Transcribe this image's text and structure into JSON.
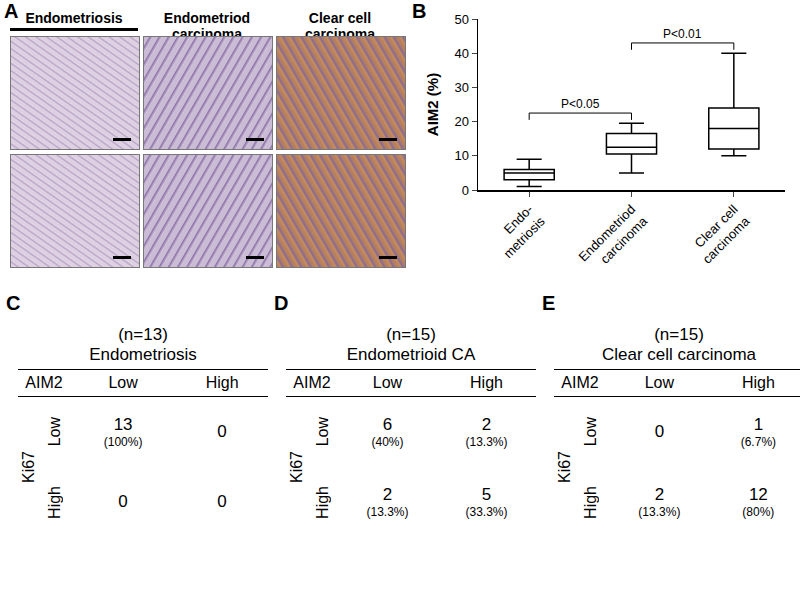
{
  "panel_a": {
    "label": "A",
    "columns": [
      "Endometriosis",
      "Endometriod carcinoma",
      "Clear cell carcinoma"
    ]
  },
  "chart_data": {
    "type": "box",
    "panel_label": "B",
    "categories": [
      "Endo-\nmetriosis",
      "Endometriod\ncarcinoma",
      "Clear cell\ncarcinoma"
    ],
    "min": [
      1,
      5,
      10
    ],
    "q1": [
      3,
      10.5,
      12
    ],
    "median": [
      5,
      12.5,
      18
    ],
    "q3": [
      6,
      16.5,
      24
    ],
    "max": [
      9,
      19.5,
      40
    ],
    "y_label": "AIM2 (%)",
    "ylim": [
      0,
      50
    ],
    "yticks": [
      0,
      10,
      20,
      30,
      40,
      50
    ],
    "color": "#000000",
    "grid": false,
    "comparisons": [
      {
        "from": 0,
        "to": 1,
        "label": "P<0.05"
      },
      {
        "from": 1,
        "to": 2,
        "label": "P<0.01"
      }
    ]
  },
  "tables": [
    {
      "label": "C",
      "n": "(n=13)",
      "title": "Endometriosis",
      "col_header": "AIM2",
      "row_header": "Ki67",
      "levels": [
        "Low",
        "High"
      ],
      "cells": [
        [
          {
            "count": "13",
            "percent": "(100%)"
          },
          {
            "count": "0",
            "percent": null
          }
        ],
        [
          {
            "count": "0",
            "percent": null
          },
          {
            "count": "0",
            "percent": null
          }
        ]
      ]
    },
    {
      "label": "D",
      "n": "(n=15)",
      "title": "Endometrioid CA",
      "col_header": "AIM2",
      "row_header": "Ki67",
      "levels": [
        "Low",
        "High"
      ],
      "cells": [
        [
          {
            "count": "6",
            "percent": "(40%)"
          },
          {
            "count": "2",
            "percent": "(13.3%)"
          }
        ],
        [
          {
            "count": "2",
            "percent": "(13.3%)"
          },
          {
            "count": "5",
            "percent": "(33.3%)"
          }
        ]
      ]
    },
    {
      "label": "E",
      "n": "(n=15)",
      "title": "Clear cell carcinoma",
      "col_header": "AIM2",
      "row_header": "Ki67",
      "levels": [
        "Low",
        "High"
      ],
      "cells": [
        [
          {
            "count": "0",
            "percent": null
          },
          {
            "count": "1",
            "percent": "(6.7%)"
          }
        ],
        [
          {
            "count": "2",
            "percent": "(13.3%)"
          },
          {
            "count": "12",
            "percent": "(80%)"
          }
        ]
      ]
    }
  ]
}
